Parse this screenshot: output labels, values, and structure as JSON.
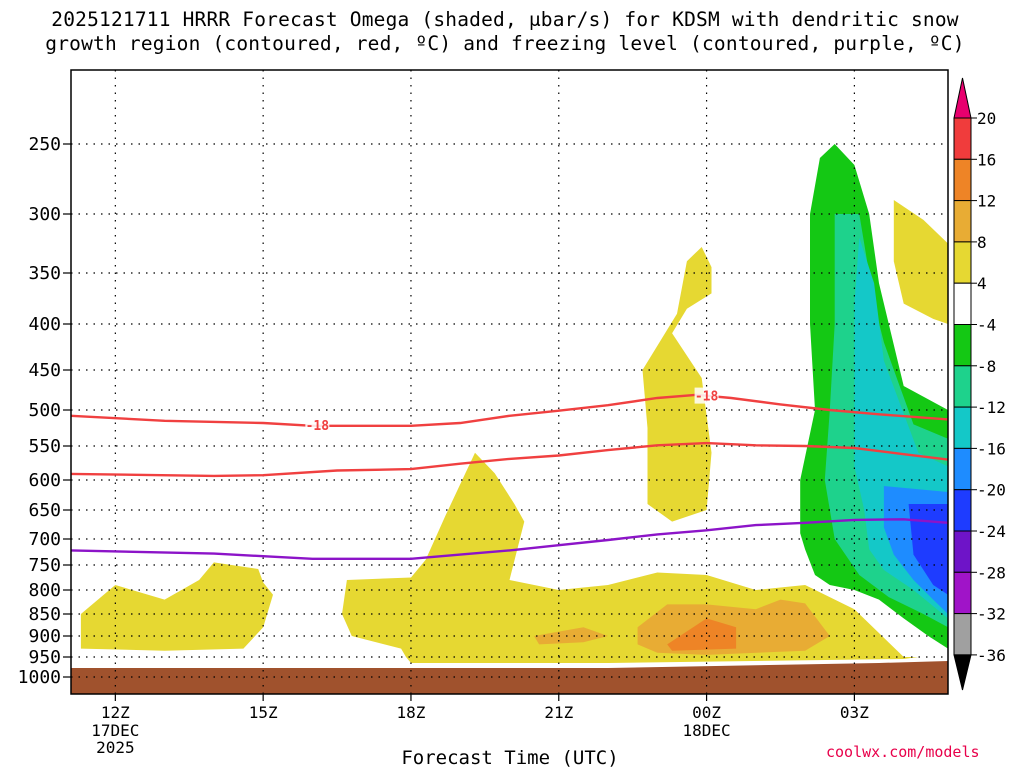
{
  "title": {
    "line1": "2025121711 HRRR Forecast Omega (shaded, μbar/s) for KDSM with dendritic snow",
    "line2": "growth region (contoured, red, ºC) and freezing level (contoured, purple, ºC)"
  },
  "credit": "coolwx.com/models",
  "chart_data": {
    "type": "time-height cross section (filled contours)",
    "xlabel": "Forecast Time (UTC)",
    "x_ticks": [
      {
        "label": "12Z",
        "sub": [
          "17DEC",
          "2025"
        ],
        "hour": 0
      },
      {
        "label": "15Z",
        "sub": [],
        "hour": 3
      },
      {
        "label": "18Z",
        "sub": [],
        "hour": 6
      },
      {
        "label": "21Z",
        "sub": [],
        "hour": 9
      },
      {
        "label": "00Z",
        "sub": [
          "18DEC"
        ],
        "hour": 12
      },
      {
        "label": "03Z",
        "sub": [],
        "hour": 15
      }
    ],
    "x_range_hours": [
      -0.9,
      16.9
    ],
    "y_ticks": [
      "250",
      "300",
      "350",
      "400",
      "450",
      "500",
      "550",
      "600",
      "650",
      "700",
      "750",
      "800",
      "850",
      "900",
      "950",
      "1000"
    ],
    "y_range_hPa": [
      200,
      1005
    ],
    "grid": true,
    "colorbar": {
      "labels": [
        "20",
        "16",
        "12",
        "8",
        "4",
        "-4",
        "-8",
        "-12",
        "-16",
        "-20",
        "-24",
        "-28",
        "-32",
        "-36"
      ],
      "colors": [
        "#e8006e",
        "#f03c3c",
        "#ee8426",
        "#e8ac34",
        "#e6d832",
        "#ffffff",
        "#14c814",
        "#1ed28c",
        "#14c8c8",
        "#1e8cff",
        "#1e3cff",
        "#6e14c8",
        "#a014c8",
        "#a0a0a0",
        "#000000"
      ]
    },
    "colors": {
      "c4": "#e6d832",
      "c8": "#e8ac34",
      "c12": "#ee8426",
      "m4": "#14c814",
      "m8": "#1ed28c",
      "m12": "#14c8c8",
      "m16": "#1e8cff",
      "m20": "#1e3cff",
      "ground": "#a0522d",
      "dgz_line": "#f04040",
      "freezing_line": "#8c14c8"
    },
    "dgz_label": "-18",
    "contours": {
      "dgz_top": [
        [
          -0.9,
          508
        ],
        [
          1,
          515
        ],
        [
          3,
          518
        ],
        [
          4,
          522
        ],
        [
          6,
          522
        ],
        [
          7,
          518
        ],
        [
          8,
          508
        ],
        [
          9,
          501
        ],
        [
          10,
          494
        ],
        [
          11,
          485
        ],
        [
          11.8,
          481
        ],
        [
          12.5,
          485
        ],
        [
          13.5,
          493
        ],
        [
          14.5,
          500
        ],
        [
          15.5,
          506
        ],
        [
          16.9,
          513
        ]
      ],
      "dgz_bottom": [
        [
          -0.9,
          591
        ],
        [
          2,
          594
        ],
        [
          3,
          593
        ],
        [
          4.5,
          586
        ],
        [
          6,
          584
        ],
        [
          7,
          576
        ],
        [
          8,
          569
        ],
        [
          9,
          564
        ],
        [
          10,
          556
        ],
        [
          11,
          549
        ],
        [
          12,
          546
        ],
        [
          13,
          549
        ],
        [
          14,
          550
        ],
        [
          15,
          553
        ],
        [
          16,
          562
        ],
        [
          16.9,
          570
        ]
      ],
      "freezing": [
        [
          -0.9,
          722
        ],
        [
          2,
          728
        ],
        [
          3,
          733
        ],
        [
          4,
          738
        ],
        [
          6,
          738
        ],
        [
          7,
          730
        ],
        [
          8,
          722
        ],
        [
          9,
          712
        ],
        [
          10,
          702
        ],
        [
          11,
          692
        ],
        [
          12,
          685
        ],
        [
          13,
          676
        ],
        [
          14,
          672
        ],
        [
          15,
          667
        ],
        [
          16,
          666
        ],
        [
          16.9,
          672
        ]
      ]
    },
    "omega_regions": [
      {
        "level": "c4",
        "pts": [
          [
            -0.7,
            850
          ],
          [
            0,
            790
          ],
          [
            1,
            820
          ],
          [
            1.7,
            780
          ],
          [
            2,
            745
          ],
          [
            2.9,
            758
          ],
          [
            3,
            785
          ],
          [
            3.2,
            810
          ],
          [
            3,
            880
          ],
          [
            2.6,
            930
          ],
          [
            1,
            935
          ],
          [
            -0.7,
            930
          ]
        ]
      },
      {
        "level": "c4",
        "pts": [
          [
            4.7,
            780
          ],
          [
            6,
            775
          ],
          [
            6.3,
            740
          ],
          [
            6.7,
            660
          ],
          [
            7.3,
            560
          ],
          [
            7.7,
            590
          ],
          [
            8.1,
            640
          ],
          [
            8.3,
            670
          ],
          [
            8,
            780
          ],
          [
            9,
            800
          ],
          [
            10,
            790
          ],
          [
            11,
            765
          ],
          [
            12,
            770
          ],
          [
            13,
            800
          ],
          [
            14,
            790
          ],
          [
            15,
            840
          ],
          [
            16,
            950
          ],
          [
            16.3,
            950
          ],
          [
            16,
            955
          ],
          [
            10,
            965
          ],
          [
            6,
            965
          ],
          [
            5.9,
            950
          ],
          [
            5.8,
            930
          ],
          [
            4.8,
            900
          ],
          [
            4.6,
            850
          ]
        ]
      },
      {
        "level": "c4",
        "pts": [
          [
            10.8,
            525
          ],
          [
            10.7,
            450
          ],
          [
            11.4,
            390
          ],
          [
            11.6,
            340
          ],
          [
            11.9,
            328
          ],
          [
            12.1,
            345
          ],
          [
            12.1,
            370
          ],
          [
            11.6,
            385
          ],
          [
            11.3,
            410
          ],
          [
            11.9,
            460
          ],
          [
            12.1,
            560
          ],
          [
            12,
            650
          ],
          [
            11.3,
            670
          ],
          [
            10.8,
            640
          ]
        ]
      },
      {
        "level": "c4",
        "pts": [
          [
            15.8,
            290
          ],
          [
            16.4,
            305
          ],
          [
            16.9,
            325
          ],
          [
            16.9,
            400
          ],
          [
            16.6,
            395
          ],
          [
            16,
            380
          ],
          [
            15.8,
            340
          ]
        ]
      },
      {
        "level": "c8",
        "pts": [
          [
            8.5,
            900
          ],
          [
            9.5,
            880
          ],
          [
            10,
            900
          ],
          [
            9.5,
            915
          ],
          [
            8.6,
            920
          ]
        ]
      },
      {
        "level": "c8",
        "pts": [
          [
            10.6,
            880
          ],
          [
            11.2,
            830
          ],
          [
            12,
            830
          ],
          [
            13,
            840
          ],
          [
            13.5,
            820
          ],
          [
            14,
            828
          ],
          [
            14.5,
            900
          ],
          [
            14,
            935
          ],
          [
            12,
            945
          ],
          [
            11,
            940
          ],
          [
            10.6,
            920
          ]
        ]
      },
      {
        "level": "c12",
        "pts": [
          [
            11.2,
            920
          ],
          [
            12,
            860
          ],
          [
            12.6,
            880
          ],
          [
            12.6,
            930
          ],
          [
            11.3,
            935
          ]
        ]
      },
      {
        "level": "m4",
        "pts": [
          [
            14.3,
            260
          ],
          [
            14.6,
            250
          ],
          [
            15,
            265
          ],
          [
            15.3,
            300
          ],
          [
            15.5,
            360
          ],
          [
            16,
            470
          ],
          [
            16.9,
            500
          ],
          [
            16.9,
            930
          ],
          [
            16.5,
            900
          ],
          [
            16,
            860
          ],
          [
            15.5,
            820
          ],
          [
            15,
            800
          ],
          [
            14.5,
            790
          ],
          [
            14.2,
            770
          ],
          [
            14,
            720
          ],
          [
            13.9,
            690
          ],
          [
            13.9,
            600
          ],
          [
            14.2,
            500
          ],
          [
            14.1,
            400
          ],
          [
            14.1,
            300
          ]
        ]
      },
      {
        "level": "m8",
        "pts": [
          [
            14.6,
            300
          ],
          [
            15.1,
            300
          ],
          [
            15.4,
            380
          ],
          [
            15.6,
            420
          ],
          [
            16.2,
            520
          ],
          [
            16.9,
            540
          ],
          [
            16.9,
            880
          ],
          [
            16.4,
            850
          ],
          [
            15.7,
            815
          ],
          [
            15.1,
            770
          ],
          [
            14.6,
            700
          ],
          [
            14.4,
            600
          ],
          [
            14.5,
            500
          ],
          [
            14.6,
            400
          ]
        ]
      },
      {
        "level": "m12",
        "pts": [
          [
            15.1,
            320
          ],
          [
            15.4,
            360
          ],
          [
            15.6,
            440
          ],
          [
            16.3,
            560
          ],
          [
            16.9,
            580
          ],
          [
            16.9,
            860
          ],
          [
            16.2,
            800
          ],
          [
            15.6,
            760
          ],
          [
            15.3,
            720
          ],
          [
            15.2,
            650
          ],
          [
            15,
            580
          ],
          [
            15,
            480
          ],
          [
            15,
            380
          ]
        ]
      },
      {
        "level": "m16",
        "pts": [
          [
            15.6,
            610
          ],
          [
            16.9,
            620
          ],
          [
            16.9,
            850
          ],
          [
            16.6,
            820
          ],
          [
            16.2,
            780
          ],
          [
            15.8,
            730
          ],
          [
            15.6,
            680
          ]
        ]
      },
      {
        "level": "m20",
        "pts": [
          [
            16.1,
            640
          ],
          [
            16.9,
            640
          ],
          [
            16.9,
            810
          ],
          [
            16.6,
            790
          ],
          [
            16.2,
            730
          ]
        ]
      }
    ]
  }
}
